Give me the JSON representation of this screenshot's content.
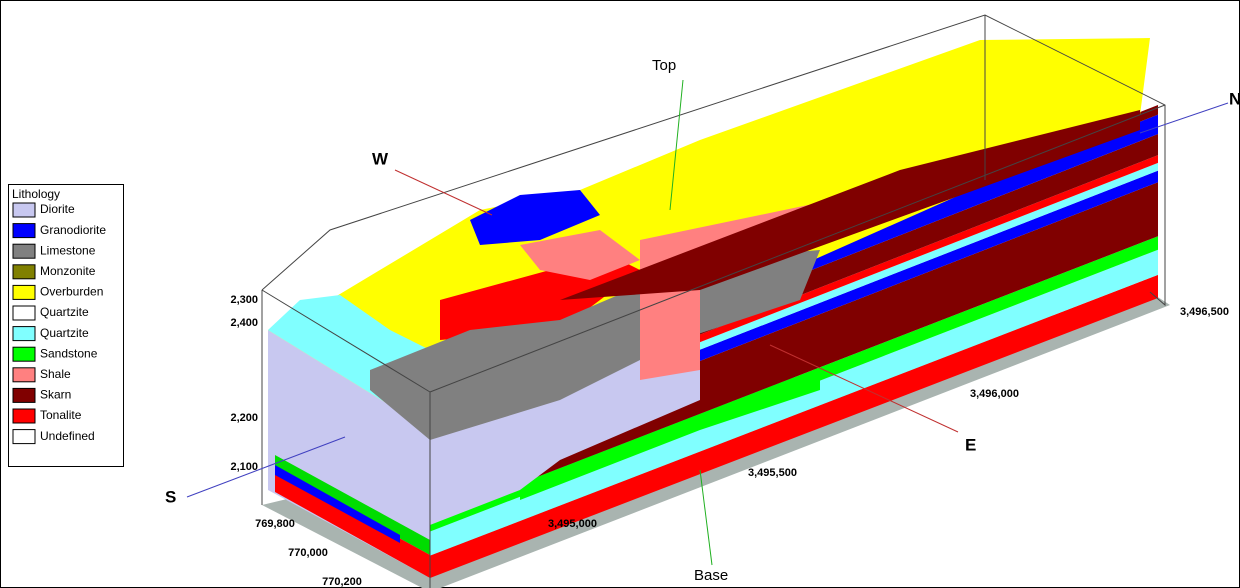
{
  "legend": {
    "title": "Lithology",
    "items": [
      {
        "label": "Diorite",
        "color": "#c8c8f0"
      },
      {
        "label": "Granodiorite",
        "color": "#0000ff"
      },
      {
        "label": "Limestone",
        "color": "#808080"
      },
      {
        "label": "Monzonite",
        "color": "#808000"
      },
      {
        "label": "Overburden",
        "color": "#ffff00"
      },
      {
        "label": "Quartzite",
        "color": "#ffffff"
      },
      {
        "label": "Quartzite",
        "color": "#80ffff"
      },
      {
        "label": "Sandstone",
        "color": "#00ff00"
      },
      {
        "label": "Shale",
        "color": "#ff8080"
      },
      {
        "label": "Skarn",
        "color": "#800000"
      },
      {
        "label": "Tonalite",
        "color": "#ff0000"
      },
      {
        "label": "Undefined",
        "color": "#ffffff"
      }
    ]
  },
  "directions": {
    "top": "Top",
    "base": "Base",
    "north": "N",
    "south": "S",
    "east": "E",
    "west": "W"
  },
  "elevation_labels": [
    "2,400",
    "2,300",
    "2,200",
    "2,100"
  ],
  "easting_labels": [
    "769,800",
    "770,000",
    "770,200"
  ],
  "northing_labels": [
    "3,495,000",
    "3,495,500",
    "3,496,000",
    "3,496,500"
  ]
}
